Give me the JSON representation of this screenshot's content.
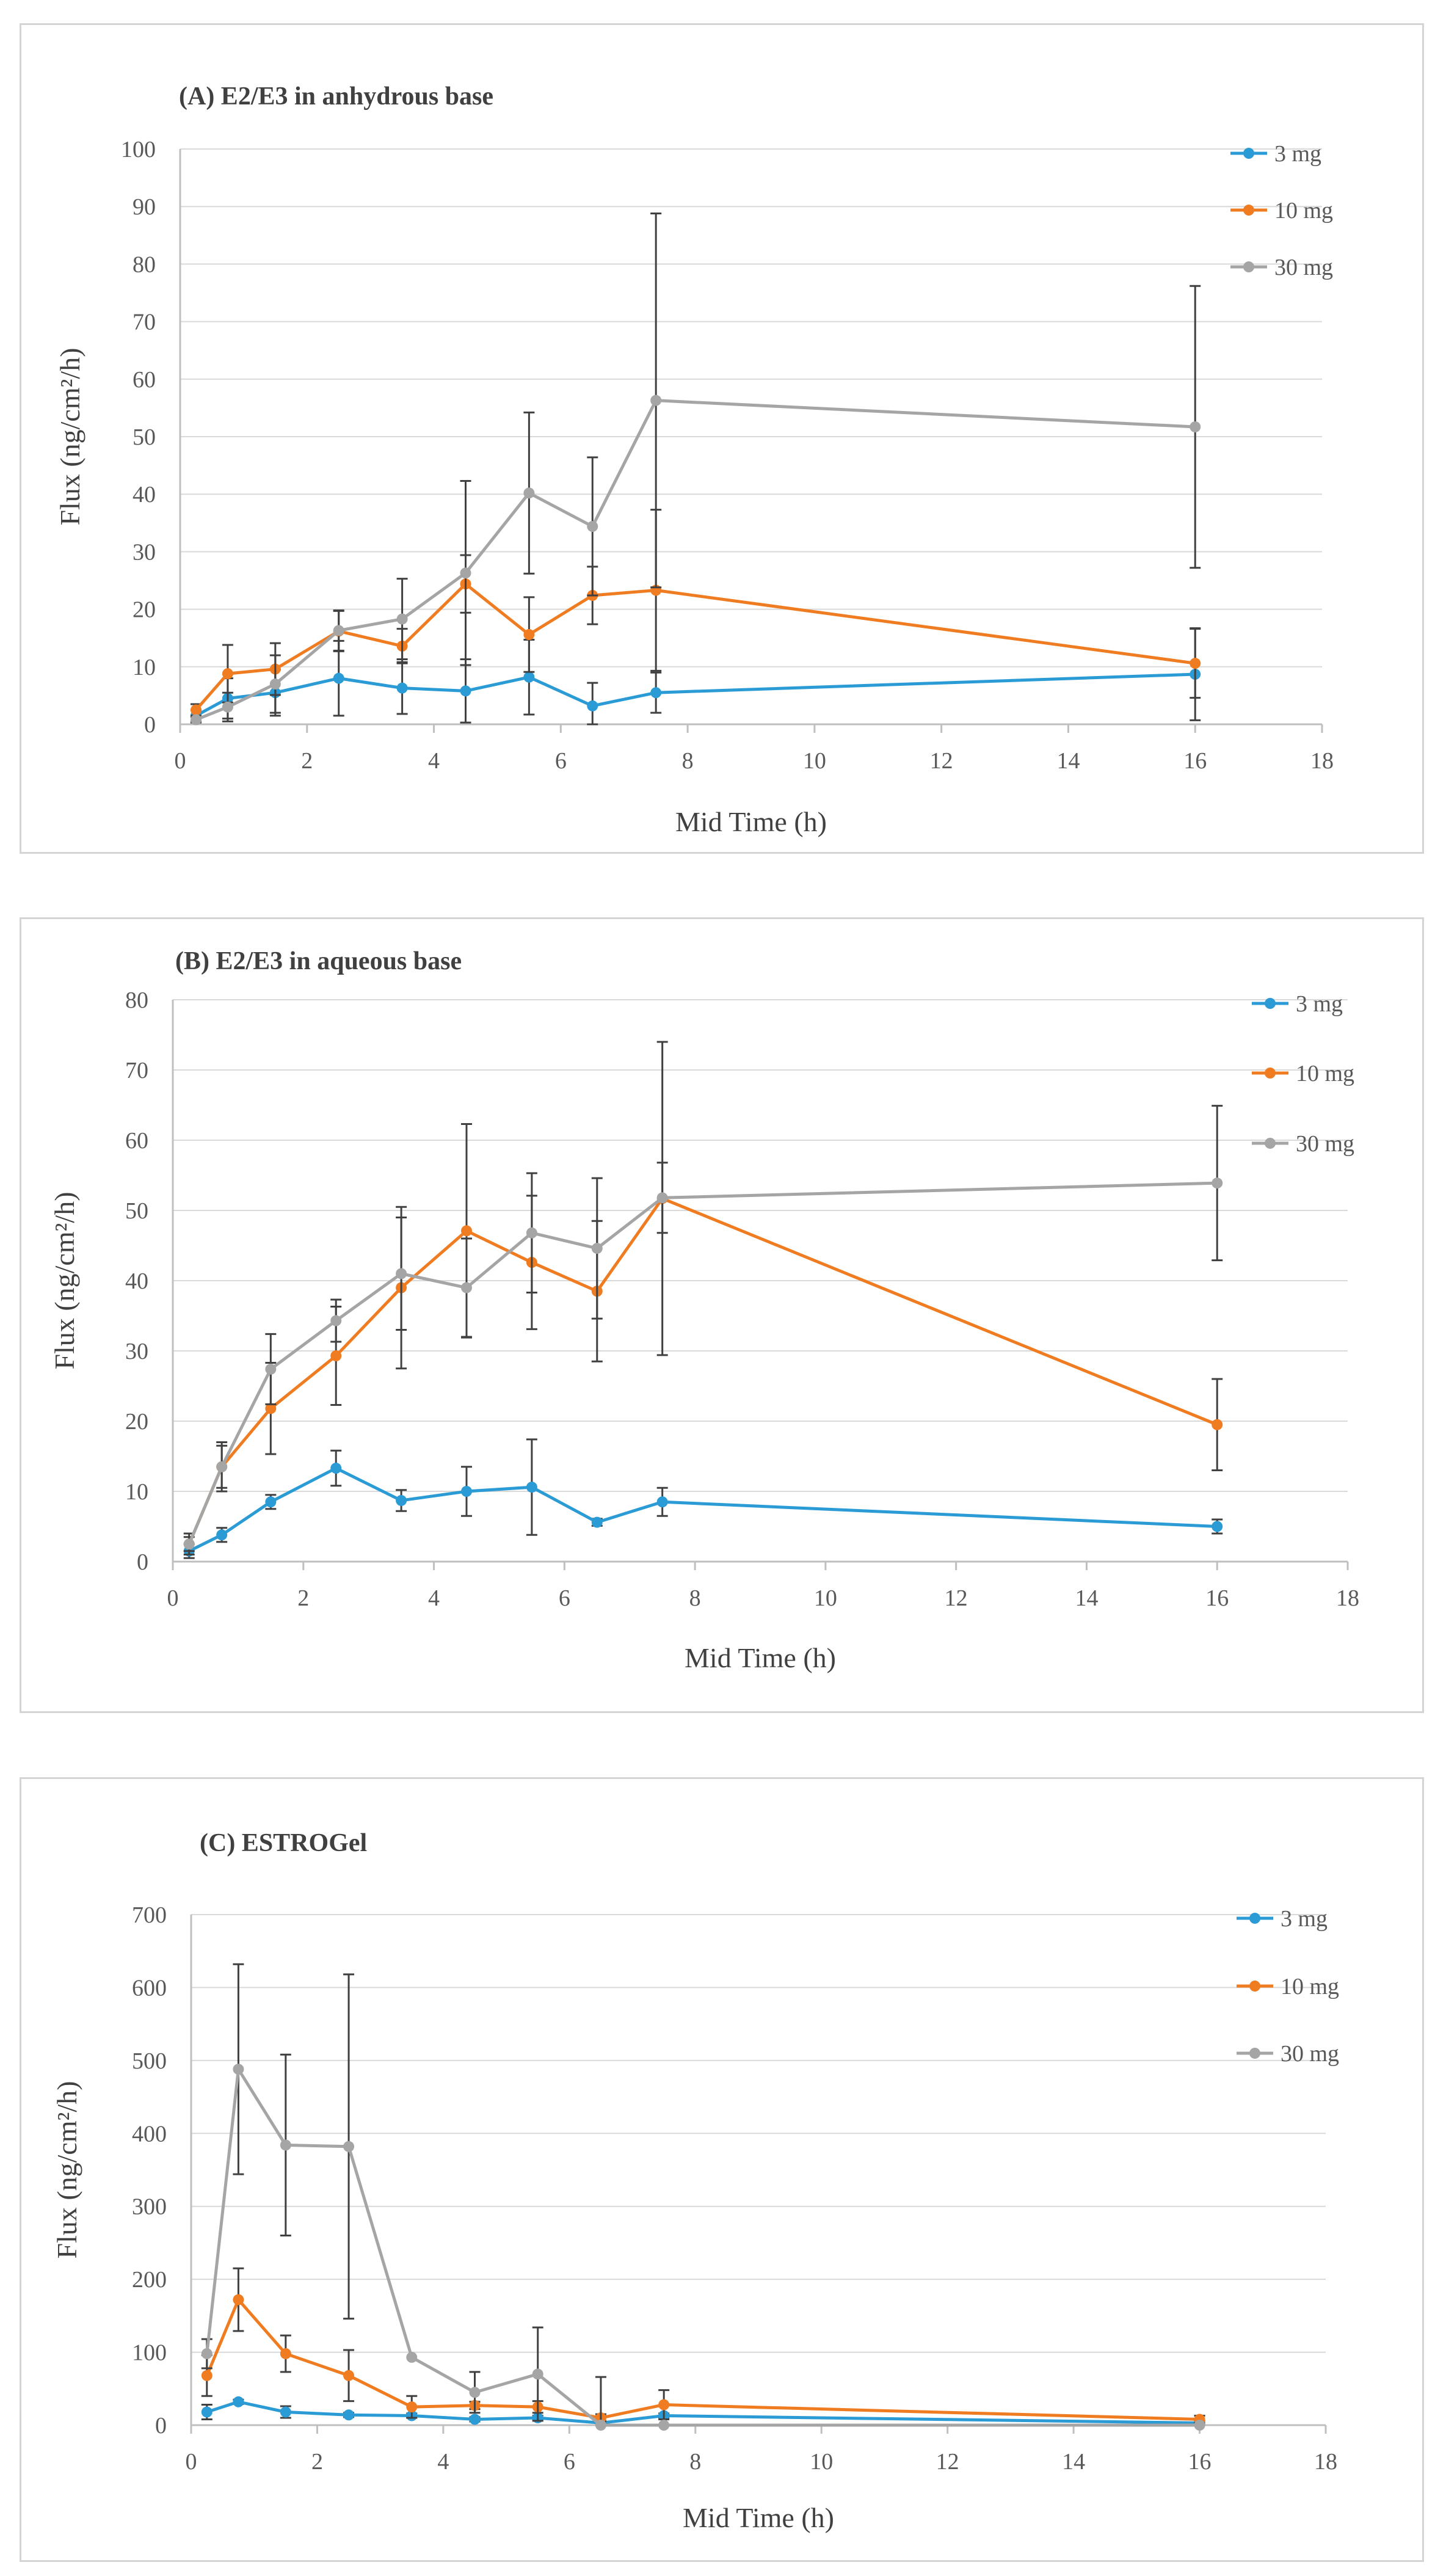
{
  "chart_data": [
    {
      "type": "line",
      "title": "(A) E2/E3 in anhydrous base",
      "xlabel": "Mid Time (h)",
      "ylabel": "Flux (ng/cm²/h)",
      "xlim": [
        0,
        18
      ],
      "ylim": [
        0,
        100
      ],
      "xticks": [
        0,
        2,
        4,
        6,
        8,
        10,
        12,
        14,
        16,
        18
      ],
      "yticks": [
        0,
        10,
        20,
        30,
        40,
        50,
        60,
        70,
        80,
        90,
        100
      ],
      "legend_position": "top-right",
      "series": [
        {
          "name": "3 mg",
          "color": "#2b9bd6",
          "x": [
            0.25,
            0.75,
            1.5,
            2.5,
            3.5,
            4.5,
            5.5,
            6.5,
            7.5,
            16
          ],
          "y": [
            1.5,
            4.5,
            5.5,
            8,
            6.3,
            5.8,
            8.2,
            3.2,
            5.5,
            8.7
          ],
          "err": [
            1.0,
            3.5,
            4.0,
            6.5,
            4.5,
            5.5,
            6.5,
            4.0,
            3.5,
            8.0
          ]
        },
        {
          "name": "10 mg",
          "color": "#f07c22",
          "x": [
            0.25,
            0.75,
            1.5,
            2.5,
            3.5,
            4.5,
            5.5,
            6.5,
            7.5,
            16
          ],
          "y": [
            2.5,
            8.8,
            9.6,
            16.2,
            13.6,
            24.4,
            15.6,
            22.4,
            23.3,
            10.6
          ],
          "err": [
            1.0,
            5.0,
            4.5,
            3.5,
            3.0,
            5.0,
            6.5,
            5.0,
            14.0,
            6.0
          ]
        },
        {
          "name": "30 mg",
          "color": "#a5a5a5",
          "x": [
            0.25,
            0.75,
            1.5,
            2.5,
            3.5,
            4.5,
            5.5,
            6.5,
            7.5,
            16
          ],
          "y": [
            0.8,
            3.0,
            7.0,
            16.3,
            18.3,
            26.3,
            40.2,
            34.4,
            56.3,
            51.7
          ],
          "err": [
            0.5,
            2.5,
            5.0,
            3.5,
            7.0,
            16.0,
            14.0,
            12.0,
            32.5,
            24.5
          ]
        }
      ]
    },
    {
      "type": "line",
      "title": "(B) E2/E3 in aqueous base",
      "xlabel": "Mid Time (h)",
      "ylabel": "Flux (ng/cm²/h)",
      "xlim": [
        0,
        18
      ],
      "ylim": [
        0,
        80
      ],
      "xticks": [
        0,
        2,
        4,
        6,
        8,
        10,
        12,
        14,
        16,
        18
      ],
      "yticks": [
        0,
        10,
        20,
        30,
        40,
        50,
        60,
        70,
        80
      ],
      "legend_position": "top-right",
      "series": [
        {
          "name": "3 mg",
          "color": "#2b9bd6",
          "x": [
            0.25,
            0.75,
            1.5,
            2.5,
            3.5,
            4.5,
            5.5,
            6.5,
            7.5,
            16
          ],
          "y": [
            1.5,
            3.8,
            8.5,
            13.3,
            8.7,
            10.0,
            10.6,
            5.6,
            8.5,
            5.0
          ],
          "err": [
            1.0,
            1.0,
            1.0,
            2.5,
            1.5,
            3.5,
            6.8,
            0.5,
            2.0,
            1.0
          ]
        },
        {
          "name": "10 mg",
          "color": "#f07c22",
          "x": [
            0.25,
            0.75,
            1.5,
            2.5,
            3.5,
            4.5,
            5.5,
            6.5,
            7.5,
            16
          ],
          "y": [
            2.5,
            13.5,
            21.8,
            29.3,
            39.0,
            47.1,
            42.6,
            38.5,
            51.7,
            19.5
          ],
          "err": [
            1.0,
            3.5,
            6.5,
            7.0,
            11.5,
            15.2,
            9.5,
            10.0,
            22.3,
            6.5
          ]
        },
        {
          "name": "30 mg",
          "color": "#a5a5a5",
          "x": [
            0.25,
            0.75,
            1.5,
            2.5,
            3.5,
            4.5,
            5.5,
            6.5,
            7.5,
            16
          ],
          "y": [
            2.5,
            13.5,
            27.4,
            34.3,
            41.0,
            39.0,
            46.8,
            44.6,
            51.8,
            53.9
          ],
          "err": [
            1.5,
            3.0,
            5.0,
            3.0,
            8.0,
            7.0,
            8.5,
            10.0,
            5.0,
            11.0
          ]
        }
      ]
    },
    {
      "type": "line",
      "title": "(C) ESTROGel",
      "xlabel": "Mid Time (h)",
      "ylabel": "Flux (ng/cm²/h)",
      "xlim": [
        0,
        18
      ],
      "ylim": [
        0,
        700
      ],
      "xticks": [
        0,
        2,
        4,
        6,
        8,
        10,
        12,
        14,
        16,
        18
      ],
      "yticks": [
        0,
        100,
        200,
        300,
        400,
        500,
        600,
        700
      ],
      "legend_position": "top-right",
      "series": [
        {
          "name": "3 mg",
          "color": "#2b9bd6",
          "x": [
            0.25,
            0.75,
            1.5,
            2.5,
            3.5,
            4.5,
            5.5,
            6.5,
            7.5,
            16
          ],
          "y": [
            18,
            32,
            18,
            14,
            13,
            8,
            10,
            3,
            13,
            3
          ],
          "err": [
            10,
            3,
            8,
            3,
            3,
            3,
            3,
            3,
            3,
            3
          ]
        },
        {
          "name": "10 mg",
          "color": "#f07c22",
          "x": [
            0.25,
            0.75,
            1.5,
            2.5,
            3.5,
            4.5,
            5.5,
            6.5,
            7.5,
            16
          ],
          "y": [
            68,
            172,
            98,
            68,
            25,
            27,
            25,
            10,
            28,
            8
          ],
          "err": [
            28,
            43,
            25,
            35,
            15,
            5,
            8,
            5,
            20,
            5
          ]
        },
        {
          "name": "30 mg",
          "color": "#a5a5a5",
          "x": [
            0.25,
            0.75,
            1.5,
            2.5,
            3.5,
            4.5,
            5.5,
            6.5,
            7.5,
            16
          ],
          "y": [
            98,
            488,
            384,
            382,
            93,
            45,
            70,
            0,
            0,
            0
          ],
          "err": [
            20,
            144,
            124,
            236,
            0,
            28,
            64,
            66,
            0,
            0
          ]
        }
      ]
    }
  ]
}
